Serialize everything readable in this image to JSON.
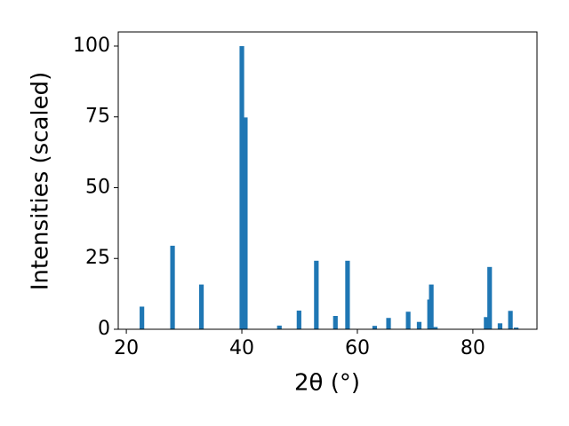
{
  "chart_data": {
    "type": "bar",
    "x": [
      22.7,
      28.0,
      33.0,
      40.0,
      40.6,
      46.5,
      49.9,
      52.9,
      56.2,
      58.3,
      63.0,
      65.4,
      68.8,
      70.7,
      72.5,
      72.8,
      73.5,
      82.3,
      82.9,
      84.7,
      86.5,
      87.5
    ],
    "values": [
      8,
      29.5,
      15.8,
      100,
      74.8,
      1.3,
      6.6,
      24.2,
      4.7,
      24.2,
      1.2,
      4.0,
      6.2,
      2.6,
      10.5,
      15.8,
      0.8,
      4.3,
      22,
      2.1,
      6.5,
      0.6
    ],
    "color": "#1f77b4",
    "xlabel": "2θ (°)",
    "ylabel": "Intensities (scaled)",
    "xlim": [
      18.6,
      91.1
    ],
    "xticks": [
      20,
      40,
      60,
      80
    ],
    "ylim": [
      0,
      105
    ],
    "yticks": [
      0,
      25,
      50,
      75,
      100
    ]
  }
}
